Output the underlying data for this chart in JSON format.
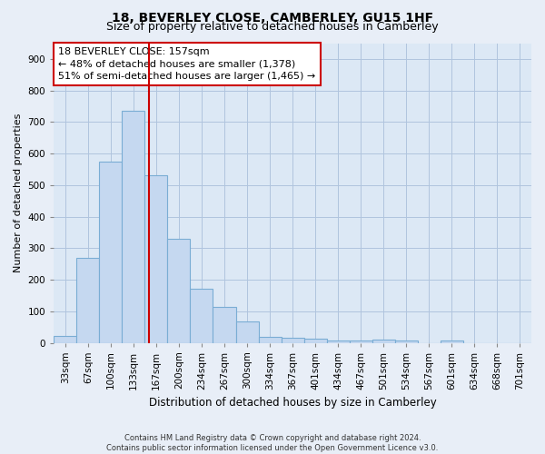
{
  "title": "18, BEVERLEY CLOSE, CAMBERLEY, GU15 1HF",
  "subtitle": "Size of property relative to detached houses in Camberley",
  "xlabel": "Distribution of detached houses by size in Camberley",
  "ylabel": "Number of detached properties",
  "bar_labels": [
    "33sqm",
    "67sqm",
    "100sqm",
    "133sqm",
    "167sqm",
    "200sqm",
    "234sqm",
    "267sqm",
    "300sqm",
    "334sqm",
    "367sqm",
    "401sqm",
    "434sqm",
    "467sqm",
    "501sqm",
    "534sqm",
    "567sqm",
    "601sqm",
    "634sqm",
    "668sqm",
    "701sqm"
  ],
  "bar_values": [
    22,
    270,
    575,
    735,
    530,
    330,
    170,
    115,
    68,
    20,
    15,
    12,
    8,
    8,
    9,
    8,
    0,
    8,
    0,
    0,
    0
  ],
  "bar_color": "#c5d8f0",
  "bar_edgecolor": "#7aadd4",
  "vline_color": "#cc0000",
  "vline_x": 3.7,
  "annotation_line1": "18 BEVERLEY CLOSE: 157sqm",
  "annotation_line2": "← 48% of detached houses are smaller (1,378)",
  "annotation_line3": "51% of semi-detached houses are larger (1,465) →",
  "annotation_box_color": "#cc0000",
  "ylim": [
    0,
    950
  ],
  "yticks": [
    0,
    100,
    200,
    300,
    400,
    500,
    600,
    700,
    800,
    900
  ],
  "title_fontsize": 10,
  "subtitle_fontsize": 9,
  "xlabel_fontsize": 8.5,
  "ylabel_fontsize": 8,
  "annotation_fontsize": 8,
  "tick_fontsize": 7.5,
  "footer_line1": "Contains HM Land Registry data © Crown copyright and database right 2024.",
  "footer_line2": "Contains public sector information licensed under the Open Government Licence v3.0.",
  "bg_color": "#e8eef7",
  "plot_bg_color": "#dce8f5",
  "grid_color": "#b0c4de",
  "footer_fontsize": 6
}
